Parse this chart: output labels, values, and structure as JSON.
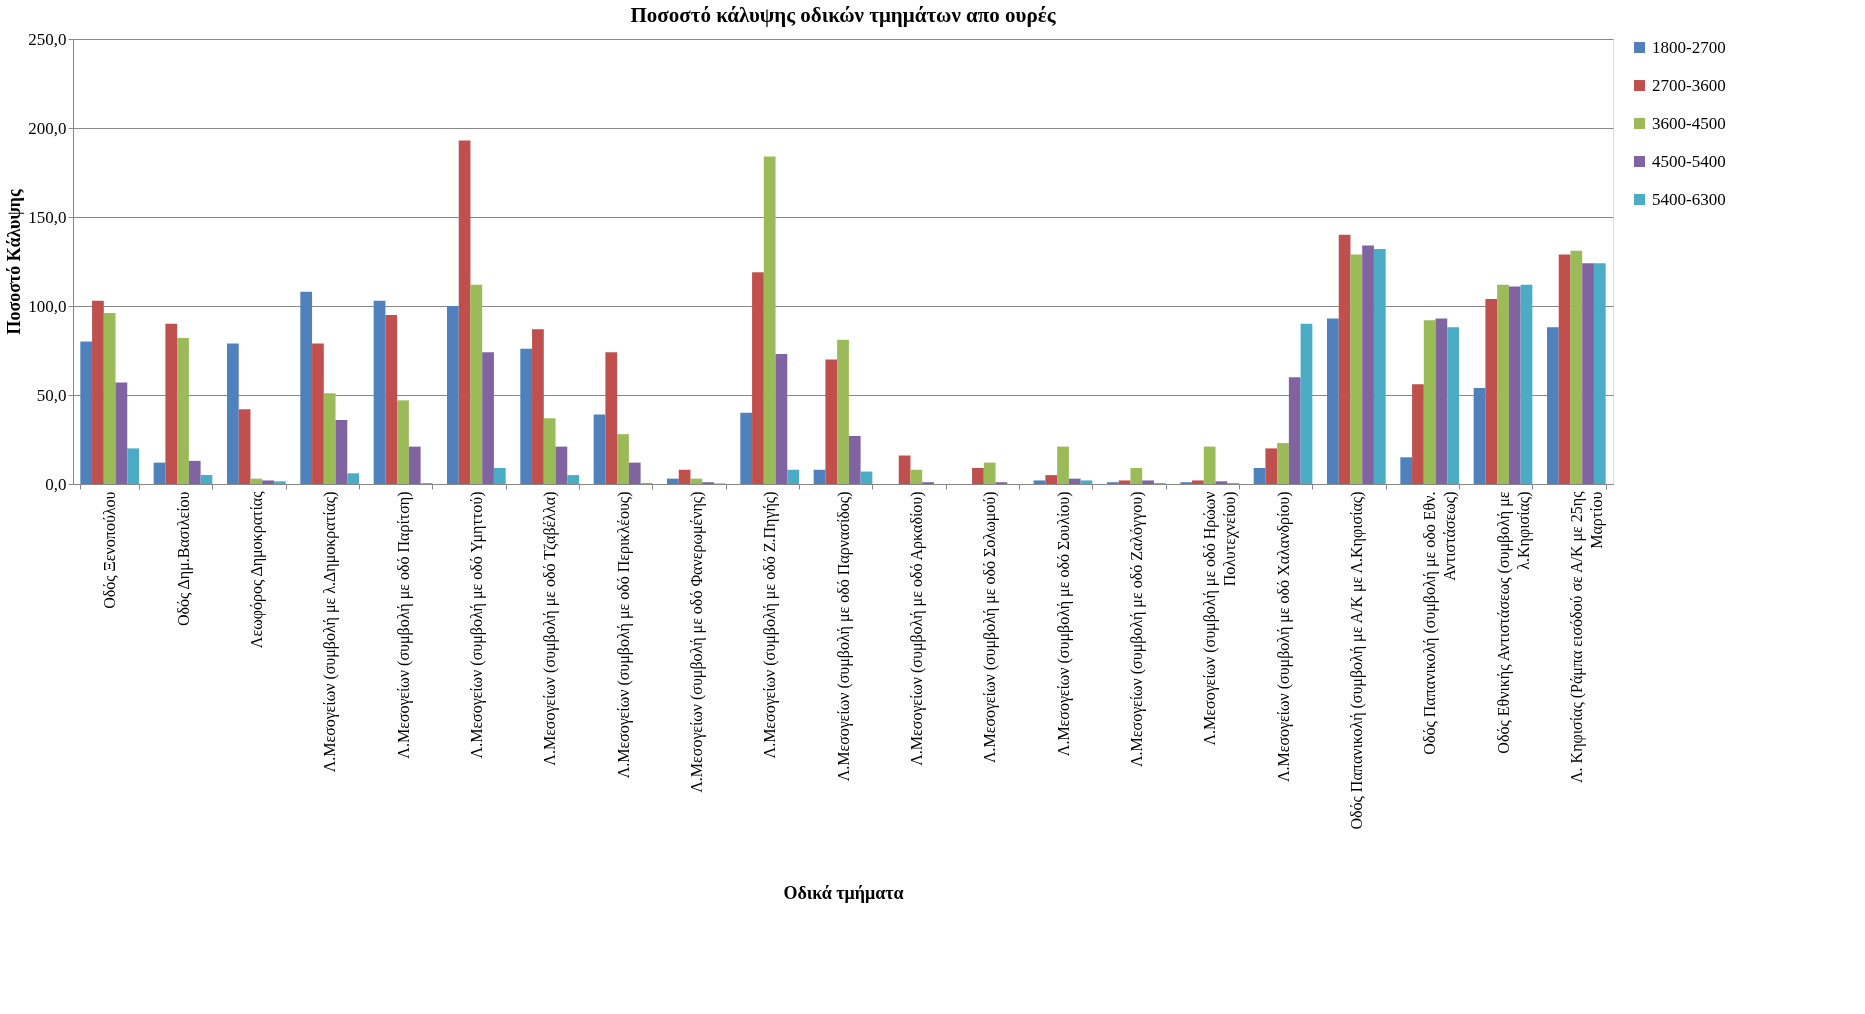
{
  "chart_data": {
    "type": "bar",
    "title": "Ποσοστό κάλυψης οδικών τμημάτων απο ουρές",
    "xlabel": "Οδικά τμήματα",
    "ylabel": "Ποσοστό Κάλυψης",
    "categories": [
      "Οδός Ξενοπούλου",
      "Οδός Δημ.Βασιλείου",
      "Λεωφόρος Δημοκρατίας",
      "Λ.Μεσογείων (συμβολή με λ.Δημοκρατίας)",
      "Λ.Μεσογείων (συμβολή με οδό Παρίτση)",
      "Λ.Μεσογείων (συμβολή με οδό Υμηττού)",
      "Λ.Μεσογείων (συμβολή με οδό  Τζαβέλλα)",
      "Λ.Μεσογείων (συμβολή με οδό Περικλέους)",
      "Λ.Μεσογείων (συμβολή με οδό Φανερωμένης)",
      "Λ.Μεσογείων (συμβολή με οδό Ζ.Πηγής)",
      "Λ.Μεσογείων (συμβολή με οδό Παρνασίδος)",
      "Λ.Μεσογείων (συμβολή με οδό Αρκαδίου)",
      "Λ.Μεσογείων (συμβολή με οδό  Σολωμού)",
      "Λ.Μεσογείων (συμβολή με οδό Σουλίου)",
      "Λ.Μεσογείων (συμβολή με οδό Ζαλόγγου)",
      "Λ.Μεσογείων (συμβολή με οδό Ηρώων Πολυτεχνείου)",
      "Λ.Μεσογείων (συμβολή με οδό Χαλανδρίου)",
      "Οδός Παπανικολή (συμβολή με Α/Κ με Λ.Κηφισίας)",
      "Οδός Παπανικολή (συμβολή με οδο Εθν. Αντιστάσεως)",
      "Οδός Εθνικής Αντιστάσεως (συμβολή με λ.Κηφισίας)",
      "Λ. Κηφισίας (Ράμπα εισόδού σε Α/Κ με 25ης Μαρτίου"
    ],
    "series": [
      {
        "name": "1800-2700",
        "color": "#4f81bd",
        "values": [
          80,
          12,
          79,
          108,
          103,
          100,
          76,
          39,
          3,
          40,
          8,
          0,
          0,
          2,
          1,
          1,
          9,
          93,
          15,
          54,
          88
        ]
      },
      {
        "name": "2700-3600",
        "color": "#c0504d",
        "values": [
          103,
          90,
          42,
          79,
          95,
          193,
          87,
          74,
          8,
          119,
          70,
          16,
          9,
          5,
          2,
          2,
          20,
          140,
          56,
          104,
          129
        ]
      },
      {
        "name": "3600-4500",
        "color": "#9bbb59",
        "values": [
          96,
          82,
          3,
          51,
          47,
          112,
          37,
          28,
          3,
          184,
          81,
          8,
          12,
          21,
          9,
          21,
          23,
          129,
          92,
          112,
          131
        ]
      },
      {
        "name": "4500-5400",
        "color": "#8064a2",
        "values": [
          57,
          13,
          2,
          36,
          21,
          74,
          21,
          12,
          1,
          73,
          27,
          1,
          1,
          3,
          2,
          1.5,
          60,
          134,
          93,
          111,
          124
        ]
      },
      {
        "name": "5400-6300",
        "color": "#4bacc6",
        "values": [
          20,
          5,
          1.5,
          6,
          0.5,
          9,
          5,
          0.5,
          0.3,
          8,
          7,
          0,
          0,
          2,
          0.5,
          0.5,
          90,
          132,
          88,
          112,
          124
        ]
      }
    ],
    "ylim": [
      0,
      250
    ],
    "yticks": [
      {
        "value": 0,
        "label": "0,0"
      },
      {
        "value": 50,
        "label": "50,0"
      },
      {
        "value": 100,
        "label": "100,0"
      },
      {
        "value": 150,
        "label": "150,0"
      },
      {
        "value": 200,
        "label": "200,0"
      },
      {
        "value": 250,
        "label": "250,0"
      }
    ],
    "grid": "y",
    "legend": "right"
  }
}
